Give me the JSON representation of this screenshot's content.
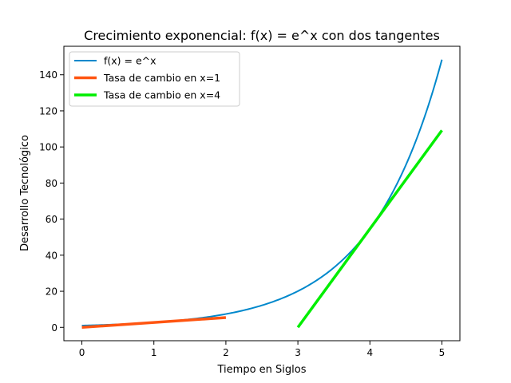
{
  "chart_data": {
    "type": "line",
    "title": "Crecimiento exponencial: f(x) = e^x con dos tangentes",
    "xlabel": "Tiempo en Siglos",
    "ylabel": "Desarrollo Tecnológico",
    "xlim": [
      -0.25,
      5.25
    ],
    "ylim": [
      -7.4,
      155.8
    ],
    "x_ticks": [
      0,
      1,
      2,
      3,
      4,
      5
    ],
    "y_ticks": [
      0,
      20,
      40,
      60,
      80,
      100,
      120,
      140
    ],
    "grid": false,
    "legend_position": "top-left",
    "series": [
      {
        "name": "f(x) = e^x",
        "color": "#0088cc",
        "x": [
          0,
          0.5,
          1,
          1.5,
          2,
          2.5,
          3,
          3.25,
          3.5,
          3.75,
          4,
          4.25,
          4.5,
          4.75,
          5
        ],
        "y": [
          1,
          1.65,
          2.72,
          4.48,
          7.39,
          12.18,
          20.09,
          25.79,
          33.12,
          42.52,
          54.6,
          70.11,
          90.02,
          115.58,
          148.41
        ]
      },
      {
        "name": "Tasa de cambio en x=1",
        "color": "#ff5511",
        "x": [
          0,
          2
        ],
        "y": [
          0,
          5.44
        ]
      },
      {
        "name": "Tasa de cambio en x=4",
        "color": "#00ee00",
        "x": [
          3,
          5
        ],
        "y": [
          0,
          109.2
        ]
      }
    ]
  }
}
